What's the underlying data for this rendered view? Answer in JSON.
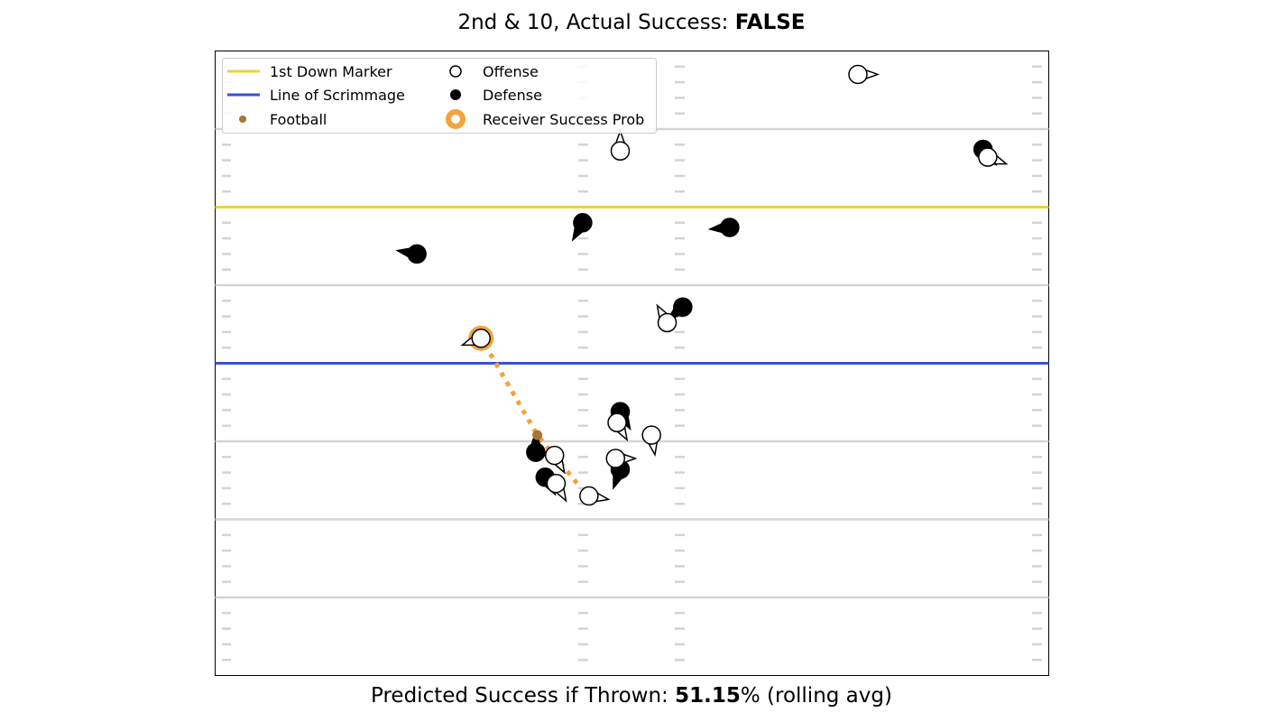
{
  "title": {
    "prefix": "2nd & 10, Actual Success: ",
    "value": "FALSE"
  },
  "footer": {
    "prefix": "Predicted Success if Thrown: ",
    "value": "51.15",
    "suffix": "% (rolling avg)"
  },
  "colors": {
    "first_down": "#e8d53a",
    "scrimmage": "#3b4fd6",
    "football": "#a57534",
    "receiver_prob": "#f4a23c",
    "yard_lines": "#d4d4d4"
  },
  "chart_data": {
    "type": "scatter",
    "title": "2nd & 10, Actual Success: FALSE",
    "xlim": [
      0,
      53.3
    ],
    "ylim": [
      0,
      40
    ],
    "grid": false,
    "legend_placement": "top-left",
    "legend": [
      {
        "label": "1st Down Marker",
        "kind": "line",
        "color": "#e8d53a"
      },
      {
        "label": "Offense",
        "kind": "open-circle"
      },
      {
        "label": "Line of Scrimmage",
        "kind": "line",
        "color": "#3b4fd6"
      },
      {
        "label": "Defense",
        "kind": "filled-circle"
      },
      {
        "label": "Football",
        "kind": "dot",
        "color": "#a57534"
      },
      {
        "label": "Receiver Success Prob",
        "kind": "ring",
        "color": "#f4a23c"
      }
    ],
    "yard_lines": [
      5,
      10,
      15,
      20,
      25,
      30,
      35
    ],
    "first_down_y": 30,
    "line_of_scrimmage_y": 20,
    "football": {
      "x": 20.6,
      "y": 15.4
    },
    "offense": [
      {
        "x": 41.1,
        "y": 38.5,
        "dir": 0
      },
      {
        "x": 25.9,
        "y": 33.6,
        "dir": 90
      },
      {
        "x": 49.4,
        "y": 33.2,
        "dir": -20
      },
      {
        "x": 17.0,
        "y": 21.6,
        "dir": 200
      },
      {
        "x": 28.9,
        "y": 22.6,
        "dir": 120
      },
      {
        "x": 25.7,
        "y": 16.2,
        "dir": -60
      },
      {
        "x": 27.9,
        "y": 15.4,
        "dir": -80
      },
      {
        "x": 21.7,
        "y": 14.1,
        "dir": -60
      },
      {
        "x": 25.6,
        "y": 13.9,
        "dir": 0
      },
      {
        "x": 21.8,
        "y": 12.3,
        "dir": -60
      },
      {
        "x": 23.9,
        "y": 11.5,
        "dir": -10
      }
    ],
    "defense": [
      {
        "x": 49.1,
        "y": 33.7,
        "dir": -50
      },
      {
        "x": 23.5,
        "y": 29.0,
        "dir": 240
      },
      {
        "x": 32.9,
        "y": 28.7,
        "dir": 185
      },
      {
        "x": 12.9,
        "y": 27.0,
        "dir": 170
      },
      {
        "x": 29.9,
        "y": 23.6,
        "dir": 220
      },
      {
        "x": 25.9,
        "y": 16.9,
        "dir": -60
      },
      {
        "x": 20.5,
        "y": 14.3,
        "dir": 90
      },
      {
        "x": 25.9,
        "y": 13.2,
        "dir": 250
      },
      {
        "x": 21.1,
        "y": 12.7,
        "dir": -60
      }
    ],
    "receiver_prob": [
      {
        "x": 17.0,
        "y": 21.6,
        "prob": 0.5115
      }
    ],
    "throw_path": [
      {
        "x": 17.6,
        "y": 20.6
      },
      {
        "x": 20.6,
        "y": 15.4
      },
      {
        "x": 23.4,
        "y": 12.0
      }
    ]
  }
}
